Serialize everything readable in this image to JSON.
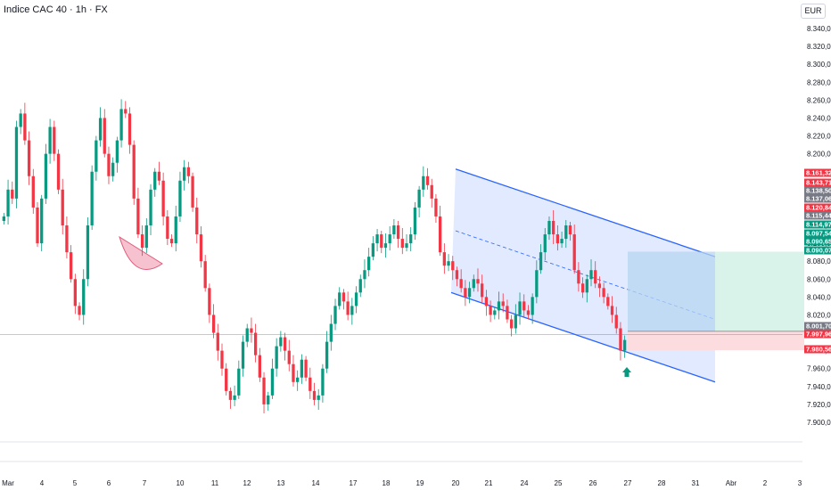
{
  "header": {
    "title": "Indice CAC 40 · 1h · FX",
    "currency": "EUR"
  },
  "colors": {
    "up": "#089981",
    "down": "#f23645",
    "channel_fill": "#dce6ff",
    "channel_line": "#2962ff",
    "target_zone": "#d9f2ea",
    "stop_zone": "#fcdcdf",
    "entry_zone": "#b7d6f0",
    "arrow": "#089981",
    "cup": "#f7c2d0"
  },
  "chart_data": {
    "type": "candlestick",
    "title": "Indice CAC 40 · 1h · FX",
    "ylim": [
      7890,
      8350
    ],
    "y_ticks": [
      "8.340,00",
      "8.320,00",
      "8.300,00",
      "8.280,00",
      "8.260,00",
      "8.240,00",
      "8.220,00",
      "8.200,00",
      "8.180,00",
      "8.160,00",
      "8.140,00",
      "8.120,00",
      "8.100,00",
      "8.080,00",
      "8.060,00",
      "8.040,00",
      "8.020,00",
      "8.000,00",
      "7.980,00",
      "7.960,00",
      "7.940,00",
      "7.920,00",
      "7.900,00"
    ],
    "x_ticks": [
      "Mar",
      "4",
      "5",
      "6",
      "7",
      "10",
      "11",
      "12",
      "13",
      "14",
      "17",
      "18",
      "19",
      "20",
      "21",
      "24",
      "25",
      "26",
      "27",
      "28",
      "31",
      "Abr",
      "2",
      "3"
    ],
    "close_path": [
      8130,
      8160,
      8150,
      8230,
      8245,
      8215,
      8175,
      8140,
      8100,
      8150,
      8200,
      8230,
      8200,
      8160,
      8120,
      8090,
      8060,
      8030,
      8020,
      8060,
      8120,
      8180,
      8215,
      8240,
      8200,
      8175,
      8190,
      8215,
      8250,
      8245,
      8210,
      8150,
      8110,
      8095,
      8120,
      8160,
      8180,
      8170,
      8130,
      8105,
      8100,
      8130,
      8170,
      8185,
      8175,
      8140,
      8110,
      8080,
      8050,
      8020,
      8000,
      7980,
      7960,
      7935,
      7925,
      7930,
      7960,
      7990,
      8005,
      8000,
      7975,
      7950,
      7920,
      7930,
      7960,
      7985,
      7995,
      7980,
      7965,
      7945,
      7950,
      7970,
      7950,
      7935,
      7925,
      7930,
      7960,
      7990,
      8010,
      8030,
      8045,
      8035,
      8020,
      8030,
      8045,
      8060,
      8070,
      8085,
      8100,
      8110,
      8095,
      8100,
      8110,
      8120,
      8105,
      8095,
      8100,
      8110,
      8140,
      8160,
      8175,
      8165,
      8150,
      8130,
      8090,
      8075,
      8080,
      8070,
      8060,
      8050,
      8040,
      8050,
      8060,
      8055,
      8040,
      8030,
      8020,
      8025,
      8035,
      8030,
      8015,
      8005,
      8020,
      8035,
      8025,
      8020,
      8040,
      8070,
      8090,
      8110,
      8125,
      8110,
      8100,
      8105,
      8120,
      8110,
      8070,
      8055,
      8045,
      8060,
      8070,
      8055,
      8050,
      8040,
      8030,
      8020,
      8005,
      7980,
      7992
    ],
    "levels": [
      {
        "label": "8.161,32",
        "color": "#f23645"
      },
      {
        "label": "8.143,71",
        "color": "#f23645"
      },
      {
        "label": "8.138,50",
        "color": "#787b86"
      },
      {
        "label": "8.137,06",
        "color": "#787b86"
      },
      {
        "label": "8.120,84",
        "color": "#f23645"
      },
      {
        "label": "8.115,44",
        "color": "#787b86"
      },
      {
        "label": "8.114,97",
        "color": "#089981"
      },
      {
        "label": "8.097,54",
        "color": "#089981"
      },
      {
        "label": "8.090,65",
        "color": "#089981"
      },
      {
        "label": "8.090,07",
        "color": "#089981"
      },
      {
        "label": "8.001,70",
        "color": "#787b86"
      },
      {
        "label": "7.997,96",
        "color": "#f23645"
      },
      {
        "label": "7.980,56",
        "color": "#f23645"
      }
    ],
    "channel": {
      "upper": [
        [
          20,
          8183
        ],
        [
          31,
          8085
        ]
      ],
      "lower": [
        [
          20,
          8045
        ],
        [
          31,
          7945
        ]
      ],
      "mid": [
        [
          20,
          8114
        ],
        [
          31,
          8015
        ]
      ]
    },
    "position": {
      "entry": 8001.7,
      "target": 8090.65,
      "stop": 7980.56
    }
  }
}
